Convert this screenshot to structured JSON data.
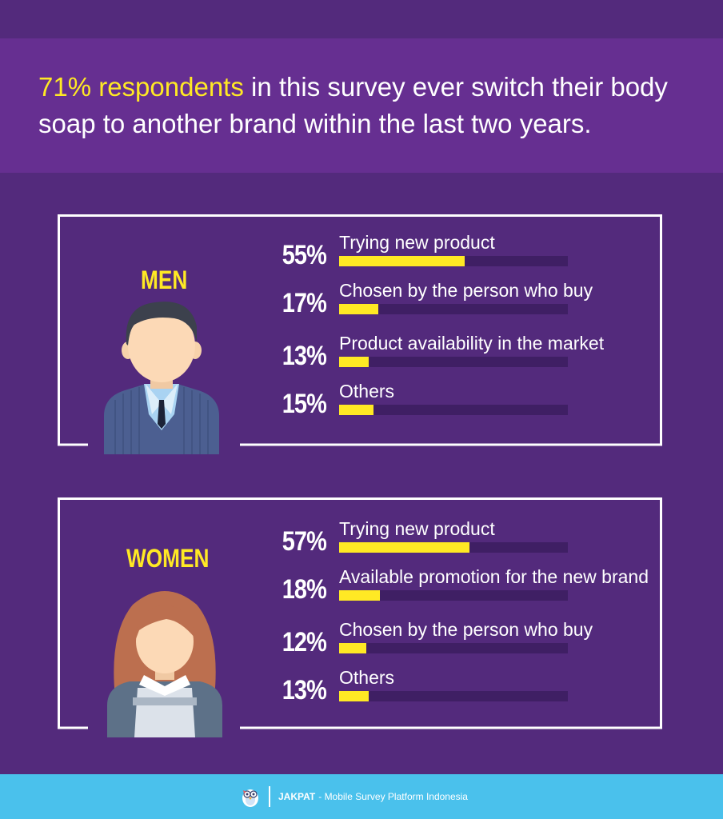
{
  "headline": {
    "highlight": "71% respondents",
    "rest": " in this survey ever switch their body soap to another brand within the last two years."
  },
  "colors": {
    "background": "#532a7c",
    "band": "#662f91",
    "accent": "#ffe924",
    "track": "#3f1f64",
    "footer": "#4ac1ec"
  },
  "chart_data": [
    {
      "type": "bar",
      "title": "MEN",
      "categories": [
        "Trying new product",
        "Chosen by the person who buy",
        "Product availability in the market",
        "Others"
      ],
      "values": [
        55,
        17,
        13,
        15
      ],
      "value_labels": [
        "55%",
        "17%",
        "13%",
        "15%"
      ],
      "ylim": [
        0,
        100
      ]
    },
    {
      "type": "bar",
      "title": "WOMEN",
      "categories": [
        "Trying new product",
        "Available promotion for the new brand",
        "Chosen by the person who buy",
        "Others"
      ],
      "values": [
        57,
        18,
        12,
        13
      ],
      "value_labels": [
        "57%",
        "18%",
        "12%",
        "13%"
      ],
      "ylim": [
        0,
        100
      ]
    }
  ],
  "icons": {
    "men": "man-avatar-icon",
    "women": "woman-avatar-icon",
    "footer": "owl-logo-icon"
  },
  "footer": {
    "brand": "JAKPAT",
    "text": "- Mobile Survey Platform Indonesia"
  }
}
